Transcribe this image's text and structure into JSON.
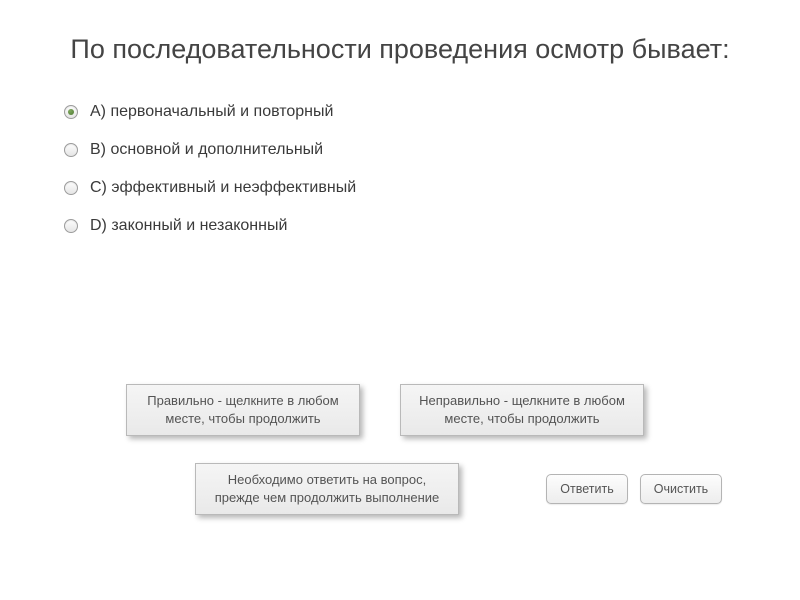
{
  "question": {
    "title": "По последовательности проведения осмотр бывает:",
    "options": [
      {
        "letter": "A)",
        "text": "первоначальный и повторный",
        "selected": true
      },
      {
        "letter": "B)",
        "text": "основной и дополнительный",
        "selected": false
      },
      {
        "letter": "C)",
        "text": "эффективный и неэффективный",
        "selected": false
      },
      {
        "letter": "D)",
        "text": "законный и незаконный",
        "selected": false
      }
    ]
  },
  "feedback": {
    "correct": "Правильно - щелкните в любом месте, чтобы продолжить",
    "incorrect": "Неправильно - щелкните в любом месте, чтобы продолжить",
    "required": "Необходимо ответить на вопрос, прежде чем продолжить выполнение"
  },
  "buttons": {
    "answer": "Ответить",
    "clear": "Очистить"
  },
  "colors": {
    "background": "#ffffff",
    "text": "#3a3a3a",
    "box_bg_top": "#f5f5f5",
    "box_bg_bottom": "#e9e9e9",
    "box_border": "#b9b9b9",
    "btn_border": "#b4b4b4",
    "radio_dot": "#4f7a33"
  }
}
